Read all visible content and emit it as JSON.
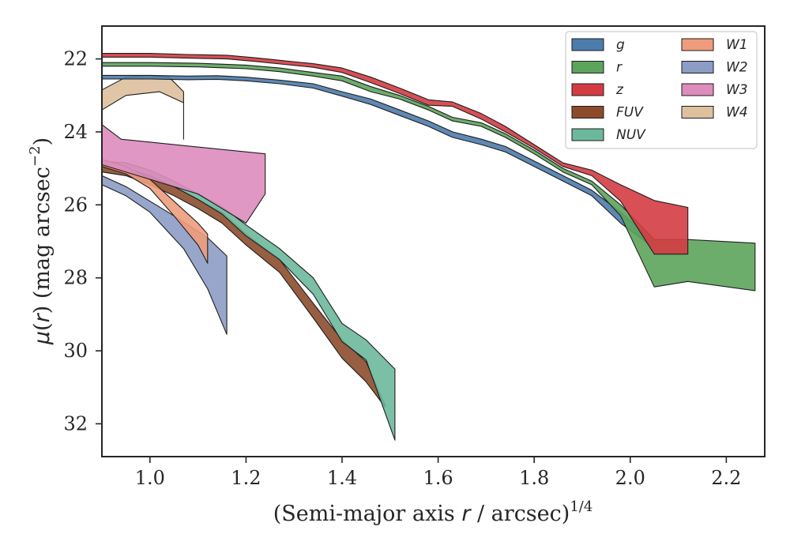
{
  "chart_data": {
    "type": "area",
    "xlabel_main": "(Semi-major axis ",
    "xlabel_var": "r",
    "xlabel_mid": " / arcsec)",
    "xlabel_sup": "1/4",
    "ylabel_mu": "μ",
    "ylabel_open": "(",
    "ylabel_var": "r",
    "ylabel_close": ") (mag arcsec",
    "ylabel_sup": "−2",
    "ylabel_end": ")",
    "xlim": [
      0.9,
      2.28
    ],
    "ylim": [
      32.9,
      21.1
    ],
    "y_inverted": true,
    "x_ticks": [
      1.0,
      1.2,
      1.4,
      1.6,
      1.8,
      2.0,
      2.2
    ],
    "x_tick_labels": [
      "1.0",
      "1.2",
      "1.4",
      "1.6",
      "1.8",
      "2.0",
      "2.2"
    ],
    "y_ticks": [
      22,
      24,
      26,
      28,
      30,
      32
    ],
    "y_tick_labels": [
      "22",
      "24",
      "26",
      "28",
      "30",
      "32"
    ],
    "grid": false,
    "legend_position": "top-right",
    "legend_columns": 2,
    "series": [
      {
        "name": "FUV",
        "color": "#8c4c2c",
        "upper": [
          [
            0.9,
            24.95
          ],
          [
            0.95,
            25.0
          ],
          [
            1.0,
            25.2
          ],
          [
            1.05,
            25.5
          ],
          [
            1.1,
            25.85
          ],
          [
            1.15,
            26.2
          ],
          [
            1.2,
            26.8
          ],
          [
            1.27,
            27.5
          ],
          [
            1.34,
            28.7
          ],
          [
            1.4,
            29.7
          ],
          [
            1.45,
            30.3
          ],
          [
            1.49,
            31.5
          ]
        ],
        "lower": [
          [
            0.9,
            25.1
          ],
          [
            0.95,
            25.2
          ],
          [
            1.0,
            25.45
          ],
          [
            1.05,
            25.75
          ],
          [
            1.1,
            26.1
          ],
          [
            1.15,
            26.5
          ],
          [
            1.2,
            27.1
          ],
          [
            1.27,
            27.85
          ],
          [
            1.34,
            29.1
          ],
          [
            1.4,
            30.2
          ],
          [
            1.45,
            30.85
          ],
          [
            1.49,
            31.55
          ]
        ]
      },
      {
        "name": "NUV",
        "color": "#6cb89c",
        "upper": [
          [
            0.9,
            24.8
          ],
          [
            0.95,
            24.85
          ],
          [
            1.0,
            25.05
          ],
          [
            1.05,
            25.35
          ],
          [
            1.1,
            25.7
          ],
          [
            1.15,
            26.05
          ],
          [
            1.2,
            26.55
          ],
          [
            1.27,
            27.2
          ],
          [
            1.34,
            28.0
          ],
          [
            1.4,
            29.25
          ],
          [
            1.45,
            29.7
          ],
          [
            1.51,
            30.5
          ]
        ],
        "lower": [
          [
            0.9,
            24.95
          ],
          [
            0.95,
            25.0
          ],
          [
            1.0,
            25.2
          ],
          [
            1.05,
            25.5
          ],
          [
            1.1,
            25.85
          ],
          [
            1.15,
            26.25
          ],
          [
            1.2,
            26.85
          ],
          [
            1.27,
            27.5
          ],
          [
            1.34,
            28.45
          ],
          [
            1.4,
            29.75
          ],
          [
            1.45,
            30.25
          ],
          [
            1.51,
            32.45
          ]
        ]
      },
      {
        "name": "W2",
        "color": "#8c9cc4",
        "upper": [
          [
            0.9,
            25.2
          ],
          [
            0.95,
            25.5
          ],
          [
            1.0,
            25.9
          ],
          [
            1.05,
            26.3
          ],
          [
            1.12,
            26.9
          ],
          [
            1.16,
            27.4
          ]
        ],
        "lower": [
          [
            0.9,
            25.45
          ],
          [
            0.95,
            25.75
          ],
          [
            1.0,
            26.2
          ],
          [
            1.07,
            27.2
          ],
          [
            1.12,
            28.3
          ],
          [
            1.16,
            29.55
          ]
        ]
      },
      {
        "name": "W1",
        "color": "#ee9c7c",
        "upper": [
          [
            0.9,
            24.75
          ],
          [
            0.95,
            24.95
          ],
          [
            1.0,
            25.3
          ],
          [
            1.05,
            25.9
          ],
          [
            1.1,
            26.5
          ],
          [
            1.12,
            26.8
          ]
        ],
        "lower": [
          [
            0.9,
            24.95
          ],
          [
            0.95,
            25.15
          ],
          [
            1.0,
            25.55
          ],
          [
            1.05,
            26.3
          ],
          [
            1.1,
            27.1
          ],
          [
            1.12,
            27.6
          ]
        ]
      },
      {
        "name": "W3",
        "color": "#dd8cbc",
        "upper": [
          [
            0.9,
            23.8
          ],
          [
            0.94,
            24.2
          ],
          [
            1.24,
            24.6
          ],
          [
            1.24,
            25.7
          ]
        ],
        "lower": [
          [
            0.9,
            24.9
          ],
          [
            1.0,
            25.3
          ],
          [
            1.1,
            25.7
          ],
          [
            1.2,
            26.5
          ]
        ]
      },
      {
        "name": "W4",
        "color": "#ddc09c",
        "upper": [
          [
            0.9,
            22.85
          ],
          [
            0.95,
            22.5
          ],
          [
            1.0,
            22.45
          ],
          [
            1.04,
            22.5
          ],
          [
            1.07,
            22.9
          ],
          [
            1.07,
            24.2
          ]
        ],
        "lower": [
          [
            0.9,
            23.4
          ],
          [
            0.95,
            23.0
          ],
          [
            1.02,
            22.9
          ],
          [
            1.07,
            23.2
          ]
        ]
      },
      {
        "name": "g",
        "color": "#4c7cac",
        "upper": [
          [
            0.9,
            22.45
          ],
          [
            1.0,
            22.45
          ],
          [
            1.08,
            22.47
          ],
          [
            1.14,
            22.46
          ],
          [
            1.2,
            22.5
          ],
          [
            1.27,
            22.58
          ],
          [
            1.34,
            22.68
          ],
          [
            1.4,
            22.9
          ],
          [
            1.46,
            23.1
          ],
          [
            1.52,
            23.4
          ],
          [
            1.58,
            23.7
          ],
          [
            1.63,
            24.0
          ],
          [
            1.69,
            24.2
          ],
          [
            1.74,
            24.4
          ],
          [
            1.8,
            24.8
          ],
          [
            1.86,
            25.2
          ],
          [
            1.92,
            25.6
          ],
          [
            1.98,
            26.2
          ],
          [
            2.05,
            27.0
          ]
        ],
        "lower": [
          [
            0.9,
            22.55
          ],
          [
            1.0,
            22.55
          ],
          [
            1.08,
            22.57
          ],
          [
            1.14,
            22.56
          ],
          [
            1.2,
            22.6
          ],
          [
            1.27,
            22.68
          ],
          [
            1.34,
            22.8
          ],
          [
            1.4,
            23.02
          ],
          [
            1.46,
            23.25
          ],
          [
            1.52,
            23.55
          ],
          [
            1.58,
            23.85
          ],
          [
            1.63,
            24.15
          ],
          [
            1.69,
            24.35
          ],
          [
            1.74,
            24.55
          ],
          [
            1.8,
            24.95
          ],
          [
            1.86,
            25.35
          ],
          [
            1.92,
            25.75
          ],
          [
            1.98,
            26.5
          ],
          [
            2.05,
            27.2
          ]
        ]
      },
      {
        "name": "r",
        "color": "#5ca45c",
        "upper": [
          [
            0.9,
            22.1
          ],
          [
            1.0,
            22.1
          ],
          [
            1.1,
            22.12
          ],
          [
            1.2,
            22.17
          ],
          [
            1.27,
            22.25
          ],
          [
            1.34,
            22.37
          ],
          [
            1.4,
            22.47
          ],
          [
            1.46,
            22.76
          ],
          [
            1.52,
            23.0
          ],
          [
            1.58,
            23.3
          ],
          [
            1.63,
            23.6
          ],
          [
            1.69,
            23.75
          ],
          [
            1.74,
            24.05
          ],
          [
            1.8,
            24.5
          ],
          [
            1.86,
            25.0
          ],
          [
            1.92,
            25.35
          ],
          [
            1.98,
            26.0
          ],
          [
            2.05,
            26.95
          ],
          [
            2.12,
            26.95
          ],
          [
            2.26,
            27.05
          ]
        ],
        "lower": [
          [
            0.9,
            22.2
          ],
          [
            1.0,
            22.2
          ],
          [
            1.1,
            22.22
          ],
          [
            1.2,
            22.27
          ],
          [
            1.27,
            22.35
          ],
          [
            1.34,
            22.47
          ],
          [
            1.4,
            22.6
          ],
          [
            1.46,
            22.9
          ],
          [
            1.52,
            23.1
          ],
          [
            1.58,
            23.4
          ],
          [
            1.63,
            23.7
          ],
          [
            1.69,
            23.85
          ],
          [
            1.74,
            24.15
          ],
          [
            1.8,
            24.6
          ],
          [
            1.86,
            25.1
          ],
          [
            1.92,
            25.45
          ],
          [
            1.98,
            26.3
          ],
          [
            2.05,
            28.25
          ],
          [
            2.12,
            28.1
          ],
          [
            2.26,
            28.35
          ]
        ]
      },
      {
        "name": "z",
        "color": "#d43c44",
        "upper": [
          [
            0.9,
            21.85
          ],
          [
            1.0,
            21.85
          ],
          [
            1.08,
            21.88
          ],
          [
            1.16,
            21.9
          ],
          [
            1.22,
            21.97
          ],
          [
            1.28,
            22.05
          ],
          [
            1.34,
            22.13
          ],
          [
            1.4,
            22.25
          ],
          [
            1.46,
            22.5
          ],
          [
            1.52,
            22.8
          ],
          [
            1.58,
            23.12
          ],
          [
            1.63,
            23.18
          ],
          [
            1.69,
            23.5
          ],
          [
            1.74,
            23.85
          ],
          [
            1.8,
            24.35
          ],
          [
            1.86,
            24.85
          ],
          [
            1.92,
            25.05
          ],
          [
            1.98,
            25.45
          ],
          [
            2.05,
            25.88
          ],
          [
            2.12,
            26.07
          ]
        ],
        "lower": [
          [
            0.9,
            21.95
          ],
          [
            1.0,
            21.95
          ],
          [
            1.08,
            21.98
          ],
          [
            1.16,
            22.0
          ],
          [
            1.22,
            22.07
          ],
          [
            1.28,
            22.15
          ],
          [
            1.34,
            22.23
          ],
          [
            1.4,
            22.37
          ],
          [
            1.46,
            22.65
          ],
          [
            1.52,
            22.95
          ],
          [
            1.58,
            23.27
          ],
          [
            1.63,
            23.3
          ],
          [
            1.69,
            23.65
          ],
          [
            1.74,
            24.0
          ],
          [
            1.8,
            24.45
          ],
          [
            1.86,
            24.95
          ],
          [
            1.92,
            25.2
          ],
          [
            1.98,
            25.9
          ],
          [
            2.05,
            27.35
          ],
          [
            2.12,
            27.35
          ]
        ]
      }
    ],
    "legend": [
      {
        "name": "g",
        "color": "#4c7cac"
      },
      {
        "name": "r",
        "color": "#5ca45c"
      },
      {
        "name": "z",
        "color": "#d43c44"
      },
      {
        "name": "FUV",
        "color": "#8c4c2c"
      },
      {
        "name": "NUV",
        "color": "#6cb89c"
      },
      {
        "name": "W1",
        "color": "#ee9c7c"
      },
      {
        "name": "W2",
        "color": "#8c9cc4"
      },
      {
        "name": "W3",
        "color": "#dd8cbc"
      },
      {
        "name": "W4",
        "color": "#ddc09c"
      }
    ]
  }
}
